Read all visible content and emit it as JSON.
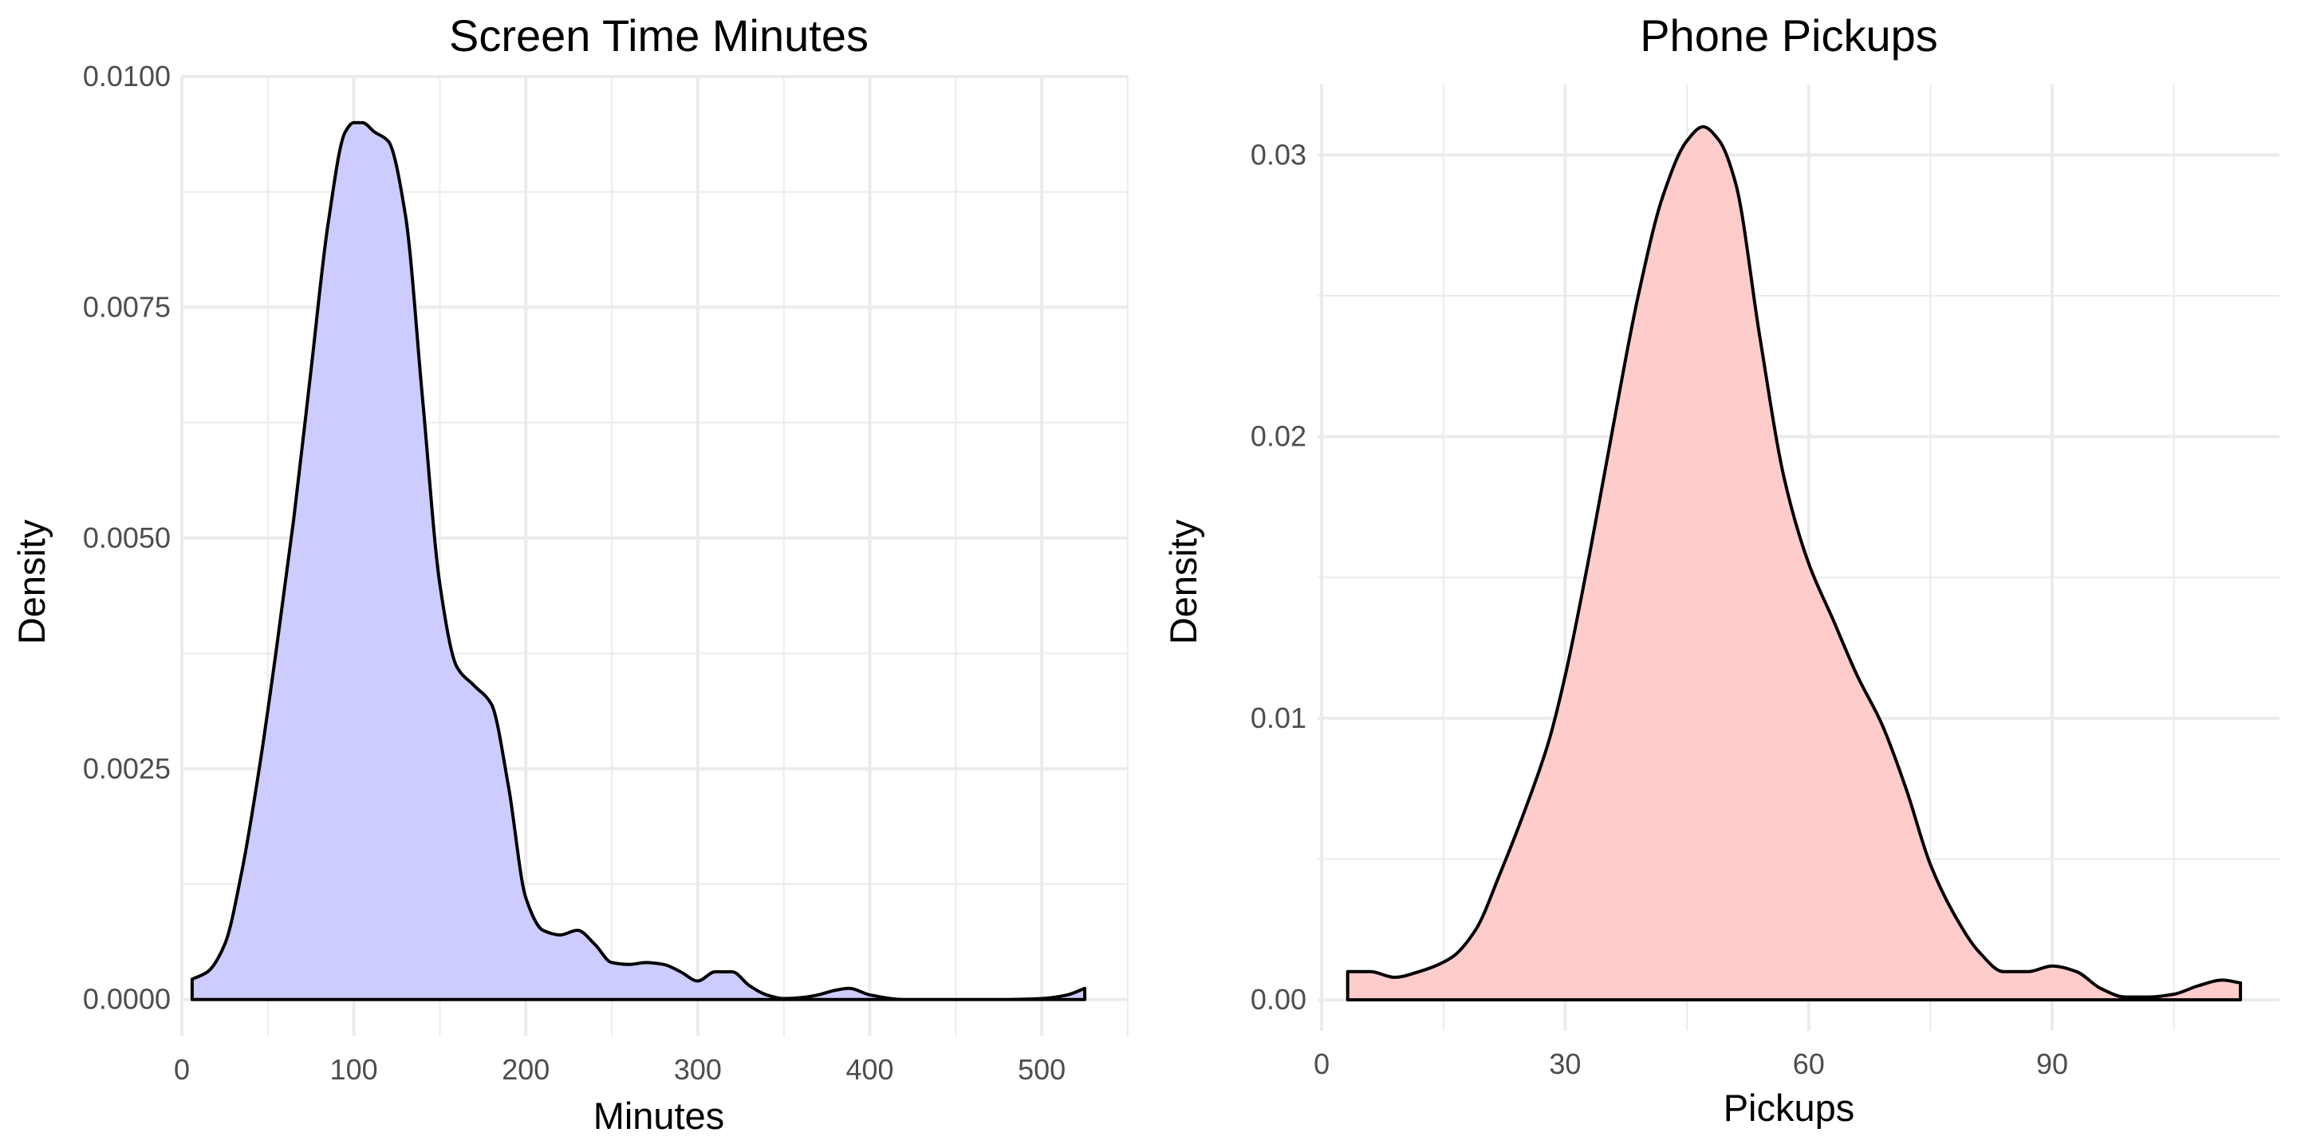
{
  "colors": {
    "screen_fill": "#ccccff",
    "pickups_fill": "#ffcccc",
    "outline": "#000000",
    "grid": "#ebebeb",
    "tick_text": "#4d4d4d"
  },
  "chart_data": [
    {
      "type": "area",
      "title": "Screen Time Minutes",
      "xlabel": "Minutes",
      "ylabel": "Density",
      "xlim": [
        0,
        550
      ],
      "ylim": [
        -0.0004,
        0.01
      ],
      "x_ticks": [
        0,
        100,
        200,
        300,
        400,
        500
      ],
      "x_tick_labels": [
        "0",
        "100",
        "200",
        "300",
        "400",
        "500"
      ],
      "y_ticks": [
        0,
        0.0025,
        0.005,
        0.0075,
        0.01
      ],
      "y_tick_labels": [
        "0.0000",
        "0.0025",
        "0.0050",
        "0.0075",
        "0.0100"
      ],
      "grid": true,
      "fill_color": "#ccccff",
      "series": [
        {
          "x": [
            6,
            15,
            25,
            35,
            45,
            55,
            65,
            75,
            85,
            95,
            100,
            105,
            112,
            120,
            130,
            140,
            150,
            160,
            170,
            180,
            190,
            200,
            210,
            220,
            230,
            240,
            250,
            260,
            270,
            280,
            290,
            300,
            310,
            320,
            330,
            340,
            350,
            360,
            370,
            380,
            388,
            400,
            420,
            450,
            480,
            500,
            515,
            525
          ],
          "y": [
            0.00022,
            0.0003,
            0.0006,
            0.0014,
            0.0025,
            0.0038,
            0.0052,
            0.0068,
            0.0084,
            0.0094,
            0.0095,
            0.0095,
            0.0094,
            0.0093,
            0.0085,
            0.0065,
            0.0045,
            0.0036,
            0.0034,
            0.0032,
            0.0023,
            0.0011,
            0.00075,
            0.0007,
            0.00075,
            0.0006,
            0.0004,
            0.00038,
            0.0004,
            0.00038,
            0.0003,
            0.0002,
            0.0003,
            0.0003,
            0.00015,
            5e-05,
            1e-05,
            2e-05,
            5e-05,
            0.0001,
            0.00012,
            5e-05,
            0.0,
            0.0,
            0.0,
            1e-05,
            5e-05,
            0.00012
          ]
        }
      ]
    },
    {
      "type": "area",
      "title": "Phone Pickups",
      "xlabel": "Pickups",
      "ylabel": "Density",
      "xlim": [
        -0.5,
        118
      ],
      "ylim": [
        -0.0011,
        0.0325
      ],
      "x_ticks": [
        0,
        30,
        60,
        90
      ],
      "x_tick_labels": [
        "0",
        "30",
        "60",
        "90"
      ],
      "y_ticks": [
        0,
        0.01,
        0.02,
        0.03
      ],
      "y_tick_labels": [
        "0.00",
        "0.01",
        "0.02",
        "0.03"
      ],
      "grid": true,
      "fill_color": "#ffcccc",
      "series": [
        {
          "x": [
            3.2,
            6,
            9,
            12,
            16,
            19,
            22,
            25,
            28,
            30,
            33,
            36,
            39,
            42,
            45,
            47,
            49,
            51,
            54,
            57,
            60,
            63,
            66,
            69,
            72,
            75,
            78,
            81,
            84,
            87,
            90,
            93,
            96,
            99,
            102,
            105,
            108,
            111,
            113.2
          ],
          "y": [
            0.001,
            0.001,
            0.0008,
            0.001,
            0.0015,
            0.0025,
            0.0045,
            0.0067,
            0.0092,
            0.0115,
            0.0158,
            0.0205,
            0.025,
            0.0285,
            0.0305,
            0.031,
            0.0305,
            0.029,
            0.0235,
            0.0185,
            0.0155,
            0.0135,
            0.0115,
            0.0098,
            0.0075,
            0.0048,
            0.003,
            0.0017,
            0.001,
            0.001,
            0.0012,
            0.001,
            0.0004,
            0.0001,
            0.0001,
            0.0002,
            0.0005,
            0.0007,
            0.0006
          ]
        }
      ]
    }
  ]
}
